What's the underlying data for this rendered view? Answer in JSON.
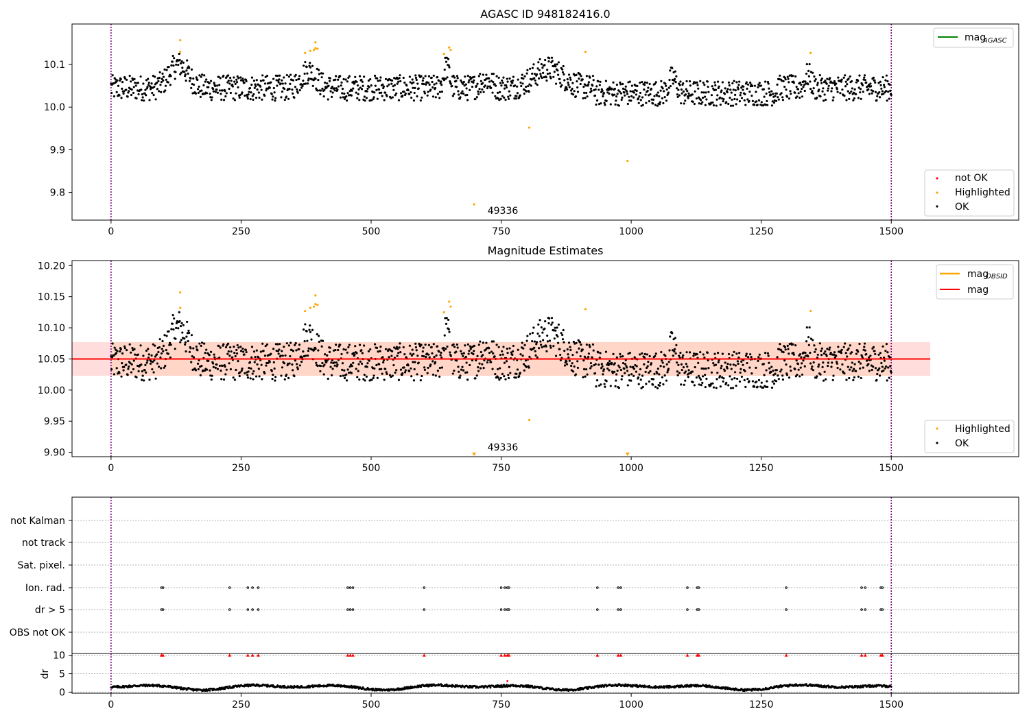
{
  "chart_data": [
    {
      "type": "scatter",
      "title": "AGASC ID 948182416.0",
      "xlim": [
        -75,
        1745
      ],
      "ylim": [
        9.735,
        10.195
      ],
      "x_ticks": [
        0,
        250,
        500,
        750,
        1000,
        1250,
        1500
      ],
      "y_ticks": [
        9.8,
        9.9,
        10.0,
        10.1
      ],
      "y_tick_labels": [
        "9.8",
        "9.9",
        "10.0",
        "10.1"
      ],
      "vlines": [
        0,
        1500
      ],
      "annotation": {
        "text": "49336",
        "x": 720,
        "y": 9.77
      },
      "legend_lines": [
        {
          "name": "mag",
          "sub": "AGASC",
          "color": "#008000"
        }
      ],
      "legend_points": [
        {
          "name": "not OK",
          "color": "#ff0000"
        },
        {
          "name": "Highlighted",
          "color": "#ffa500"
        },
        {
          "name": "OK",
          "color": "#000000"
        }
      ],
      "highlighted": [
        [
          133,
          10.157
        ],
        [
          133,
          10.13
        ],
        [
          373,
          10.127
        ],
        [
          383,
          10.132
        ],
        [
          390,
          10.134
        ],
        [
          393,
          10.138
        ],
        [
          393,
          10.152
        ],
        [
          397,
          10.137
        ],
        [
          640,
          10.125
        ],
        [
          650,
          10.14
        ],
        [
          653,
          10.134
        ],
        [
          698,
          9.772
        ],
        [
          804,
          9.952
        ],
        [
          912,
          10.13
        ],
        [
          993,
          9.874
        ],
        [
          1345,
          10.127
        ]
      ]
    },
    {
      "type": "scatter",
      "title": "Magnitude Estimates",
      "xlim": [
        -75,
        1745
      ],
      "ylim": [
        9.893,
        10.208
      ],
      "x_ticks": [
        0,
        250,
        500,
        750,
        1000,
        1250,
        1500
      ],
      "y_ticks": [
        9.9,
        9.95,
        10.0,
        10.05,
        10.1,
        10.15,
        10.2
      ],
      "y_tick_labels": [
        "9.90",
        "9.95",
        "10.00",
        "10.05",
        "10.10",
        "10.15",
        "10.20"
      ],
      "vlines": [
        0,
        1500
      ],
      "mag_line": 10.05,
      "mag_band": [
        10.023,
        10.077
      ],
      "band_x": [
        -75,
        1575
      ],
      "annotation": {
        "text": "49336",
        "x": 720,
        "y": 9.903
      },
      "legend_lines": [
        {
          "name": "mag",
          "sub": "OBSID",
          "color": "#ffa500"
        },
        {
          "name": "mag",
          "sub": "",
          "color": "#ff0000"
        }
      ],
      "legend_points": [
        {
          "name": "Highlighted",
          "color": "#ffa500"
        },
        {
          "name": "OK",
          "color": "#000000"
        }
      ],
      "highlighted": [
        [
          133,
          10.157
        ],
        [
          133,
          10.132
        ],
        [
          373,
          10.127
        ],
        [
          383,
          10.132
        ],
        [
          390,
          10.134
        ],
        [
          393,
          10.138
        ],
        [
          393,
          10.152
        ],
        [
          397,
          10.137
        ],
        [
          640,
          10.125
        ],
        [
          650,
          10.142
        ],
        [
          653,
          10.134
        ],
        [
          804,
          9.952
        ],
        [
          912,
          10.13
        ],
        [
          1345,
          10.127
        ]
      ],
      "clipped_markers": [
        698,
        993
      ]
    },
    {
      "type": "scatter",
      "xlim": [
        -75,
        1745
      ],
      "x_ticks": [
        0,
        250,
        500,
        750,
        1000,
        1250,
        1500
      ],
      "categories": [
        "not Kalman",
        "not track",
        "Sat. pixel.",
        "Ion. rad.",
        "dr > 5",
        "OBS not OK"
      ],
      "flag_x": [
        97,
        100,
        228,
        263,
        272,
        283,
        455,
        460,
        465,
        602,
        750,
        757,
        762,
        765,
        935,
        975,
        980,
        1108,
        1127,
        1130,
        1298,
        1443,
        1450,
        1480,
        1483
      ],
      "flag_rows": [
        "Ion. rad.",
        "dr > 5"
      ]
    },
    {
      "type": "scatter",
      "ylabel": "dr",
      "xlim": [
        -75,
        1745
      ],
      "ylim": [
        -0.3,
        10.5
      ],
      "x_ticks": [
        0,
        250,
        500,
        750,
        1000,
        1250,
        1500
      ],
      "y_ticks": [
        0,
        5,
        10
      ],
      "y_tick_labels": [
        "0",
        "5",
        "10"
      ],
      "vlines": [
        0,
        1500
      ],
      "clipped_x": [
        97,
        100,
        228,
        263,
        272,
        283,
        455,
        460,
        465,
        602,
        750,
        757,
        762,
        765,
        935,
        975,
        980,
        1108,
        1127,
        1130,
        1298,
        1443,
        1450,
        1480,
        1483
      ]
    }
  ],
  "colors": {
    "ok": "#000000",
    "highlight": "#ffa500",
    "notok": "#ff0000",
    "band": "#ffdddd",
    "band2": "#ffd6c8",
    "vline": "#800080"
  }
}
